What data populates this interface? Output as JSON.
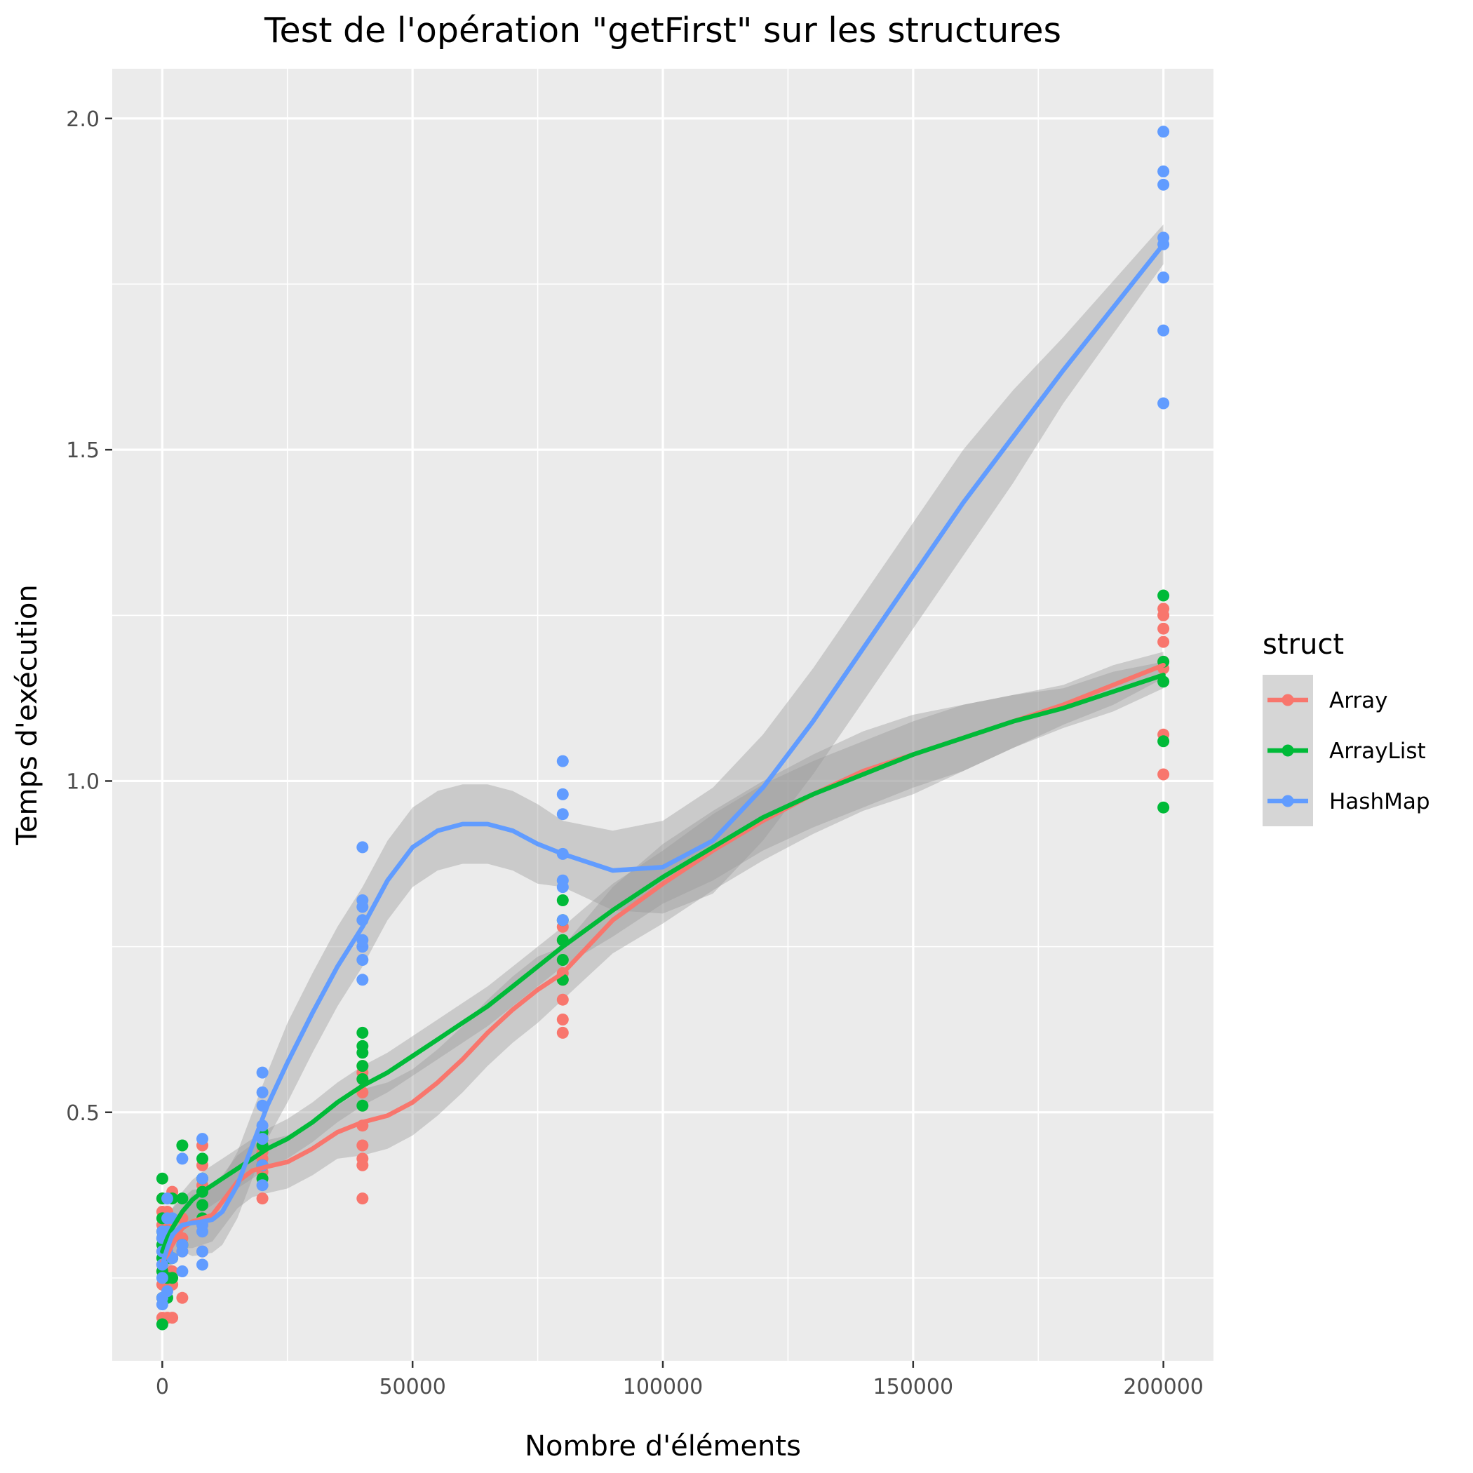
{
  "chart_data": {
    "type": "scatter",
    "title": "Test de l'opération \"getFirst\" sur les structures",
    "xlabel": "Nombre d'éléments",
    "ylabel": "Temps d'exécution",
    "xlim": [
      -10000,
      210000
    ],
    "ylim": [
      0.125,
      2.075
    ],
    "x_ticks": [
      0,
      50000,
      100000,
      150000,
      200000
    ],
    "x_tick_labels": [
      "0",
      "50000",
      "100000",
      "150000",
      "200000"
    ],
    "y_ticks": [
      0.5,
      1.0,
      1.5,
      2.0
    ],
    "y_tick_labels": [
      "0.5",
      "1.0",
      "1.5",
      "2.0"
    ],
    "x_minor": [
      25000,
      75000,
      125000,
      175000
    ],
    "y_minor": [
      0.25,
      0.75,
      1.25,
      1.75
    ],
    "grid": true,
    "legend": {
      "title": "struct",
      "position": "right"
    },
    "series": [
      {
        "name": "Array",
        "color": "#F8766D",
        "points": [
          [
            0,
            0.19
          ],
          [
            0,
            0.22
          ],
          [
            0,
            0.24
          ],
          [
            0,
            0.26
          ],
          [
            0,
            0.27
          ],
          [
            0,
            0.29
          ],
          [
            0,
            0.31
          ],
          [
            0,
            0.33
          ],
          [
            0,
            0.35
          ],
          [
            0,
            0.37
          ],
          [
            1000,
            0.19
          ],
          [
            1000,
            0.25
          ],
          [
            1000,
            0.33
          ],
          [
            1000,
            0.35
          ],
          [
            2000,
            0.19
          ],
          [
            2000,
            0.24
          ],
          [
            2000,
            0.26
          ],
          [
            2000,
            0.38
          ],
          [
            4000,
            0.22
          ],
          [
            4000,
            0.29
          ],
          [
            4000,
            0.31
          ],
          [
            4000,
            0.34
          ],
          [
            8000,
            0.29
          ],
          [
            8000,
            0.33
          ],
          [
            8000,
            0.36
          ],
          [
            8000,
            0.39
          ],
          [
            8000,
            0.42
          ],
          [
            8000,
            0.45
          ],
          [
            20000,
            0.37
          ],
          [
            20000,
            0.4
          ],
          [
            20000,
            0.41
          ],
          [
            20000,
            0.43
          ],
          [
            20000,
            0.44
          ],
          [
            20000,
            0.45
          ],
          [
            20000,
            0.47
          ],
          [
            40000,
            0.37
          ],
          [
            40000,
            0.42
          ],
          [
            40000,
            0.43
          ],
          [
            40000,
            0.45
          ],
          [
            40000,
            0.48
          ],
          [
            40000,
            0.53
          ],
          [
            40000,
            0.55
          ],
          [
            40000,
            0.56
          ],
          [
            40000,
            0.57
          ],
          [
            80000,
            0.62
          ],
          [
            80000,
            0.64
          ],
          [
            80000,
            0.67
          ],
          [
            80000,
            0.7
          ],
          [
            80000,
            0.71
          ],
          [
            80000,
            0.73
          ],
          [
            80000,
            0.76
          ],
          [
            80000,
            0.78
          ],
          [
            200000,
            1.01
          ],
          [
            200000,
            1.07
          ],
          [
            200000,
            1.17
          ],
          [
            200000,
            1.18
          ],
          [
            200000,
            1.21
          ],
          [
            200000,
            1.23
          ],
          [
            200000,
            1.25
          ],
          [
            200000,
            1.26
          ]
        ],
        "smooth": [
          [
            0,
            0.275
          ],
          [
            1000,
            0.285
          ],
          [
            2000,
            0.3
          ],
          [
            4000,
            0.325
          ],
          [
            6000,
            0.335
          ],
          [
            8000,
            0.34
          ],
          [
            10000,
            0.345
          ],
          [
            12000,
            0.365
          ],
          [
            15000,
            0.395
          ],
          [
            18000,
            0.412
          ],
          [
            21000,
            0.418
          ],
          [
            25000,
            0.425
          ],
          [
            30000,
            0.445
          ],
          [
            35000,
            0.47
          ],
          [
            40000,
            0.485
          ],
          [
            45000,
            0.495
          ],
          [
            50000,
            0.515
          ],
          [
            55000,
            0.545
          ],
          [
            60000,
            0.58
          ],
          [
            65000,
            0.62
          ],
          [
            70000,
            0.655
          ],
          [
            75000,
            0.685
          ],
          [
            80000,
            0.71
          ],
          [
            90000,
            0.79
          ],
          [
            100000,
            0.845
          ],
          [
            110000,
            0.895
          ],
          [
            120000,
            0.94
          ],
          [
            130000,
            0.98
          ],
          [
            140000,
            1.015
          ],
          [
            150000,
            1.04
          ],
          [
            160000,
            1.065
          ],
          [
            170000,
            1.09
          ],
          [
            180000,
            1.115
          ],
          [
            190000,
            1.145
          ],
          [
            200000,
            1.175
          ]
        ],
        "ci_halfwidth": [
          0.03,
          0.03,
          0.03,
          0.03,
          0.04,
          0.04,
          0.04,
          0.04,
          0.04,
          0.04,
          0.04,
          0.04,
          0.04,
          0.04,
          0.05,
          0.05,
          0.05,
          0.05,
          0.05,
          0.05,
          0.05,
          0.05,
          0.04,
          0.05,
          0.06,
          0.06,
          0.06,
          0.06,
          0.06,
          0.06,
          0.05,
          0.04,
          0.03,
          0.03,
          0.02
        ]
      },
      {
        "name": "ArrayList",
        "color": "#00BA38",
        "points": [
          [
            0,
            0.18
          ],
          [
            0,
            0.22
          ],
          [
            0,
            0.26
          ],
          [
            0,
            0.28
          ],
          [
            0,
            0.3
          ],
          [
            0,
            0.31
          ],
          [
            0,
            0.32
          ],
          [
            0,
            0.34
          ],
          [
            0,
            0.37
          ],
          [
            0,
            0.4
          ],
          [
            1000,
            0.22
          ],
          [
            1000,
            0.25
          ],
          [
            1000,
            0.28
          ],
          [
            1000,
            0.32
          ],
          [
            2000,
            0.25
          ],
          [
            2000,
            0.28
          ],
          [
            2000,
            0.37
          ],
          [
            4000,
            0.3
          ],
          [
            4000,
            0.37
          ],
          [
            4000,
            0.45
          ],
          [
            8000,
            0.34
          ],
          [
            8000,
            0.36
          ],
          [
            8000,
            0.38
          ],
          [
            8000,
            0.4
          ],
          [
            8000,
            0.43
          ],
          [
            20000,
            0.4
          ],
          [
            20000,
            0.42
          ],
          [
            20000,
            0.45
          ],
          [
            20000,
            0.46
          ],
          [
            20000,
            0.47
          ],
          [
            40000,
            0.51
          ],
          [
            40000,
            0.55
          ],
          [
            40000,
            0.57
          ],
          [
            40000,
            0.59
          ],
          [
            40000,
            0.6
          ],
          [
            40000,
            0.62
          ],
          [
            80000,
            0.7
          ],
          [
            80000,
            0.73
          ],
          [
            80000,
            0.76
          ],
          [
            80000,
            0.79
          ],
          [
            80000,
            0.82
          ],
          [
            200000,
            0.96
          ],
          [
            200000,
            1.06
          ],
          [
            200000,
            1.15
          ],
          [
            200000,
            1.18
          ],
          [
            200000,
            1.28
          ]
        ],
        "smooth": [
          [
            0,
            0.29
          ],
          [
            1000,
            0.31
          ],
          [
            2000,
            0.325
          ],
          [
            4000,
            0.35
          ],
          [
            6000,
            0.368
          ],
          [
            8000,
            0.38
          ],
          [
            10000,
            0.39
          ],
          [
            12000,
            0.4
          ],
          [
            15000,
            0.415
          ],
          [
            18000,
            0.43
          ],
          [
            21000,
            0.445
          ],
          [
            25000,
            0.46
          ],
          [
            30000,
            0.485
          ],
          [
            35000,
            0.515
          ],
          [
            40000,
            0.54
          ],
          [
            45000,
            0.56
          ],
          [
            50000,
            0.585
          ],
          [
            55000,
            0.61
          ],
          [
            60000,
            0.635
          ],
          [
            65000,
            0.66
          ],
          [
            70000,
            0.69
          ],
          [
            75000,
            0.72
          ],
          [
            80000,
            0.75
          ],
          [
            90000,
            0.805
          ],
          [
            100000,
            0.855
          ],
          [
            110000,
            0.9
          ],
          [
            120000,
            0.945
          ],
          [
            130000,
            0.98
          ],
          [
            140000,
            1.01
          ],
          [
            150000,
            1.04
          ],
          [
            160000,
            1.065
          ],
          [
            170000,
            1.09
          ],
          [
            180000,
            1.11
          ],
          [
            190000,
            1.135
          ],
          [
            200000,
            1.16
          ]
        ],
        "ci_halfwidth": [
          0.03,
          0.03,
          0.03,
          0.03,
          0.03,
          0.03,
          0.03,
          0.03,
          0.03,
          0.03,
          0.03,
          0.03,
          0.03,
          0.03,
          0.03,
          0.03,
          0.03,
          0.03,
          0.03,
          0.03,
          0.03,
          0.03,
          0.03,
          0.04,
          0.04,
          0.05,
          0.05,
          0.05,
          0.05,
          0.05,
          0.05,
          0.04,
          0.03,
          0.03,
          0.02
        ]
      },
      {
        "name": "HashMap",
        "color": "#619CFF",
        "points": [
          [
            0,
            0.21
          ],
          [
            0,
            0.22
          ],
          [
            0,
            0.25
          ],
          [
            0,
            0.27
          ],
          [
            0,
            0.29
          ],
          [
            0,
            0.31
          ],
          [
            0,
            0.32
          ],
          [
            1000,
            0.23
          ],
          [
            1000,
            0.29
          ],
          [
            1000,
            0.32
          ],
          [
            1000,
            0.34
          ],
          [
            1000,
            0.37
          ],
          [
            2000,
            0.28
          ],
          [
            2000,
            0.31
          ],
          [
            2000,
            0.34
          ],
          [
            4000,
            0.26
          ],
          [
            4000,
            0.29
          ],
          [
            4000,
            0.3
          ],
          [
            4000,
            0.43
          ],
          [
            8000,
            0.27
          ],
          [
            8000,
            0.29
          ],
          [
            8000,
            0.32
          ],
          [
            8000,
            0.33
          ],
          [
            8000,
            0.4
          ],
          [
            8000,
            0.46
          ],
          [
            20000,
            0.39
          ],
          [
            20000,
            0.42
          ],
          [
            20000,
            0.46
          ],
          [
            20000,
            0.48
          ],
          [
            20000,
            0.51
          ],
          [
            20000,
            0.53
          ],
          [
            20000,
            0.56
          ],
          [
            40000,
            0.7
          ],
          [
            40000,
            0.73
          ],
          [
            40000,
            0.75
          ],
          [
            40000,
            0.76
          ],
          [
            40000,
            0.79
          ],
          [
            40000,
            0.81
          ],
          [
            40000,
            0.82
          ],
          [
            40000,
            0.9
          ],
          [
            80000,
            0.79
          ],
          [
            80000,
            0.84
          ],
          [
            80000,
            0.85
          ],
          [
            80000,
            0.89
          ],
          [
            80000,
            0.95
          ],
          [
            80000,
            0.98
          ],
          [
            80000,
            1.03
          ],
          [
            200000,
            1.57
          ],
          [
            200000,
            1.68
          ],
          [
            200000,
            1.76
          ],
          [
            200000,
            1.81
          ],
          [
            200000,
            1.82
          ],
          [
            200000,
            1.9
          ],
          [
            200000,
            1.92
          ],
          [
            200000,
            1.98
          ]
        ],
        "smooth": [
          [
            0,
            0.27
          ],
          [
            1000,
            0.295
          ],
          [
            2000,
            0.315
          ],
          [
            4000,
            0.33
          ],
          [
            6000,
            0.333
          ],
          [
            8000,
            0.335
          ],
          [
            10000,
            0.338
          ],
          [
            12000,
            0.35
          ],
          [
            15000,
            0.39
          ],
          [
            18000,
            0.45
          ],
          [
            21000,
            0.51
          ],
          [
            25000,
            0.575
          ],
          [
            30000,
            0.65
          ],
          [
            35000,
            0.72
          ],
          [
            40000,
            0.78
          ],
          [
            45000,
            0.85
          ],
          [
            50000,
            0.9
          ],
          [
            55000,
            0.925
          ],
          [
            60000,
            0.935
          ],
          [
            65000,
            0.935
          ],
          [
            70000,
            0.925
          ],
          [
            75000,
            0.905
          ],
          [
            80000,
            0.89
          ],
          [
            90000,
            0.865
          ],
          [
            100000,
            0.87
          ],
          [
            110000,
            0.91
          ],
          [
            120000,
            0.99
          ],
          [
            130000,
            1.09
          ],
          [
            140000,
            1.2
          ],
          [
            150000,
            1.31
          ],
          [
            160000,
            1.42
          ],
          [
            170000,
            1.52
          ],
          [
            180000,
            1.62
          ],
          [
            190000,
            1.715
          ],
          [
            200000,
            1.81
          ]
        ],
        "ci_halfwidth": [
          0.04,
          0.04,
          0.04,
          0.04,
          0.05,
          0.05,
          0.05,
          0.05,
          0.05,
          0.05,
          0.05,
          0.06,
          0.06,
          0.06,
          0.06,
          0.06,
          0.06,
          0.06,
          0.06,
          0.06,
          0.06,
          0.06,
          0.05,
          0.06,
          0.07,
          0.08,
          0.08,
          0.08,
          0.08,
          0.08,
          0.08,
          0.07,
          0.05,
          0.04,
          0.03
        ]
      }
    ]
  }
}
